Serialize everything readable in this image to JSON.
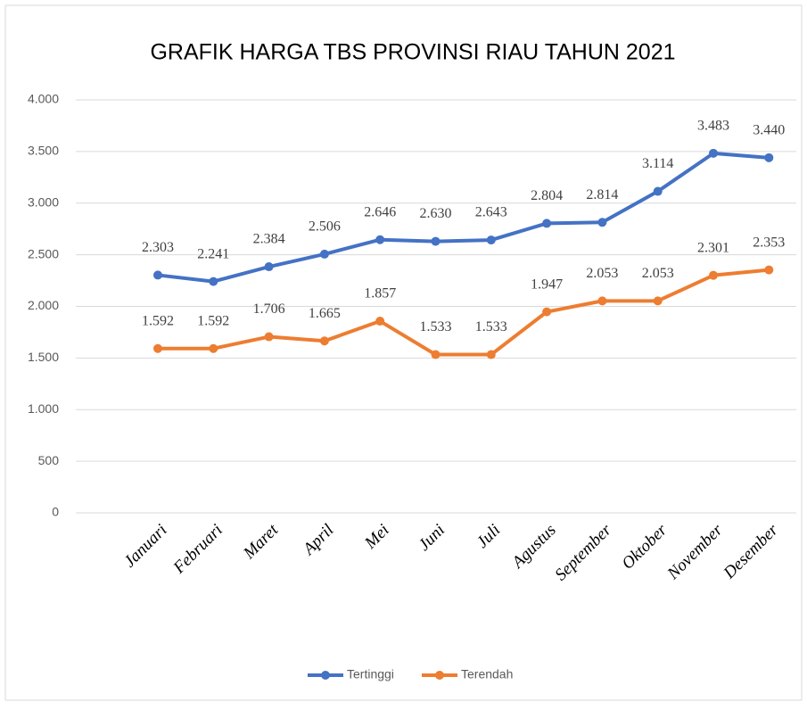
{
  "chart_data": {
    "type": "line",
    "title": "GRAFIK HARGA TBS PROVINSI RIAU TAHUN 2021",
    "categories": [
      "Januari",
      "Februari",
      "Maret",
      "April",
      "Mei",
      "Juni",
      "Juli",
      "Agustus",
      "September",
      "Oktober",
      "November",
      "Desember"
    ],
    "series": [
      {
        "name": "Tertinggi",
        "color": "#4472c4",
        "values": [
          2303,
          2241,
          2384,
          2506,
          2646,
          2630,
          2643,
          2804,
          2814,
          3114,
          3483,
          3440
        ],
        "value_labels": [
          "2.303",
          "2.241",
          "2.384",
          "2.506",
          "2.646",
          "2.630",
          "2.643",
          "2.804",
          "2.814",
          "3.114",
          "3.483",
          "3.440"
        ]
      },
      {
        "name": "Terendah",
        "color": "#ed7d31",
        "values": [
          1592,
          1592,
          1706,
          1665,
          1857,
          1533,
          1533,
          1947,
          2053,
          2053,
          2301,
          2353
        ],
        "value_labels": [
          "1.592",
          "1.592",
          "1.706",
          "1.665",
          "1.857",
          "1.533",
          "1.533",
          "1.947",
          "2.053",
          "2.053",
          "2.301",
          "2.353"
        ]
      }
    ],
    "ylim": [
      0,
      4000
    ],
    "yticks": [
      0,
      500,
      {
        "value": 1000,
        "label": "1.000"
      },
      {
        "value": 1500,
        "label": "1.500"
      },
      {
        "value": 2000,
        "label": "2.000"
      },
      {
        "value": 2500,
        "label": "2.500"
      },
      {
        "value": 3000,
        "label": "3.000"
      },
      {
        "value": 3500,
        "label": "3.500"
      },
      {
        "value": 4000,
        "label": "4.000"
      }
    ],
    "grid": true,
    "legend": "bottom"
  }
}
